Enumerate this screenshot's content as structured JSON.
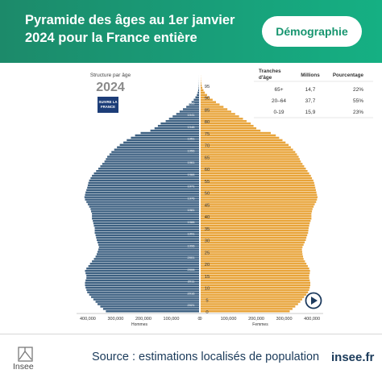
{
  "header": {
    "title": "Pyramide des âges au 1er janvier 2024 pour la France entière",
    "tag_label": "Démographie"
  },
  "footer": {
    "logo_text": "Insee",
    "source": "Source : estimations localisés de population",
    "site": "insee.fr"
  },
  "colors": {
    "header_bg": "#17a078",
    "men": "#3e6182",
    "women": "#e8a43a",
    "text_dark": "#1a3a5a"
  },
  "chart_data": {
    "type": "bar",
    "orientation": "horizontal-pyramid",
    "subtitle": "Structure par âge",
    "year_label": "2024",
    "badge_text": "SUIVRE LA FRANCE",
    "age_axis_ticks": [
      0,
      5,
      10,
      15,
      20,
      25,
      30,
      35,
      40,
      45,
      50,
      55,
      60,
      65,
      70,
      75,
      80,
      85,
      90,
      95
    ],
    "x_ticks_men": [
      "400,000",
      "300,000",
      "200,000",
      "100,000",
      "0"
    ],
    "x_ticks_women": [
      "0",
      "100,000",
      "200,000",
      "300,000",
      "400,000"
    ],
    "x_max": 420000,
    "birth_year_labels": [
      "2021",
      "2016",
      "2011",
      "2006",
      "2001",
      "1996",
      "1991",
      "1986",
      "1981",
      "1976",
      "1971",
      "1966",
      "1961",
      "1956",
      "1951",
      "1946",
      "1941",
      "1936",
      "1931"
    ],
    "series": [
      {
        "name": "Hommes",
        "values": [
          335000,
          345000,
          355000,
          365000,
          372000,
          380000,
          388000,
          395000,
          402000,
          405000,
          408000,
          410000,
          410000,
          408000,
          405000,
          405000,
          408000,
          410000,
          405000,
          398000,
          392000,
          385000,
          378000,
          372000,
          368000,
          365000,
          362000,
          360000,
          362000,
          365000,
          368000,
          370000,
          372000,
          375000,
          375000,
          375000,
          378000,
          380000,
          382000,
          385000,
          385000,
          385000,
          388000,
          390000,
          395000,
          400000,
          405000,
          410000,
          412000,
          410000,
          408000,
          405000,
          402000,
          400000,
          398000,
          395000,
          390000,
          385000,
          378000,
          370000,
          362000,
          355000,
          348000,
          340000,
          335000,
          330000,
          322000,
          315000,
          305000,
          295000,
          285000,
          272000,
          260000,
          245000,
          230000,
          210000,
          175000,
          160000,
          148000,
          138000,
          120000,
          108000,
          95000,
          82000,
          70000,
          58000,
          46000,
          36000,
          27000,
          19000,
          13000,
          8000,
          5000,
          3000,
          1500,
          800,
          400,
          200,
          100,
          50
        ]
      },
      {
        "name": "Femmes",
        "values": [
          320000,
          330000,
          340000,
          350000,
          358000,
          365000,
          372000,
          380000,
          386000,
          390000,
          392000,
          394000,
          394000,
          392000,
          390000,
          390000,
          392000,
          393000,
          390000,
          385000,
          380000,
          375000,
          370000,
          368000,
          366000,
          365000,
          364000,
          366000,
          370000,
          374000,
          378000,
          380000,
          383000,
          386000,
          387000,
          388000,
          390000,
          392000,
          395000,
          398000,
          398000,
          398000,
          400000,
          402000,
          406000,
          410000,
          415000,
          418000,
          420000,
          418000,
          416000,
          414000,
          412000,
          410000,
          408000,
          405000,
          400000,
          396000,
          390000,
          384000,
          378000,
          372000,
          366000,
          360000,
          356000,
          352000,
          346000,
          340000,
          332000,
          324000,
          316000,
          305000,
          294000,
          282000,
          270000,
          252000,
          215000,
          200000,
          190000,
          180000,
          165000,
          152000,
          138000,
          124000,
          110000,
          96000,
          82000,
          68000,
          55000,
          43000,
          32000,
          23000,
          15000,
          10000,
          6000,
          3500,
          2000,
          1000,
          500,
          250
        ]
      }
    ],
    "table": {
      "headers": [
        "Tranches d'âge",
        "Millions",
        "Pourcentage"
      ],
      "rows": [
        [
          "65+",
          "14,7",
          "22%"
        ],
        [
          "20-64",
          "37,7",
          "55%"
        ],
        [
          "0-19",
          "15,9",
          "23%"
        ]
      ]
    },
    "xlabels": [
      "Hommes",
      "Femmes"
    ]
  }
}
